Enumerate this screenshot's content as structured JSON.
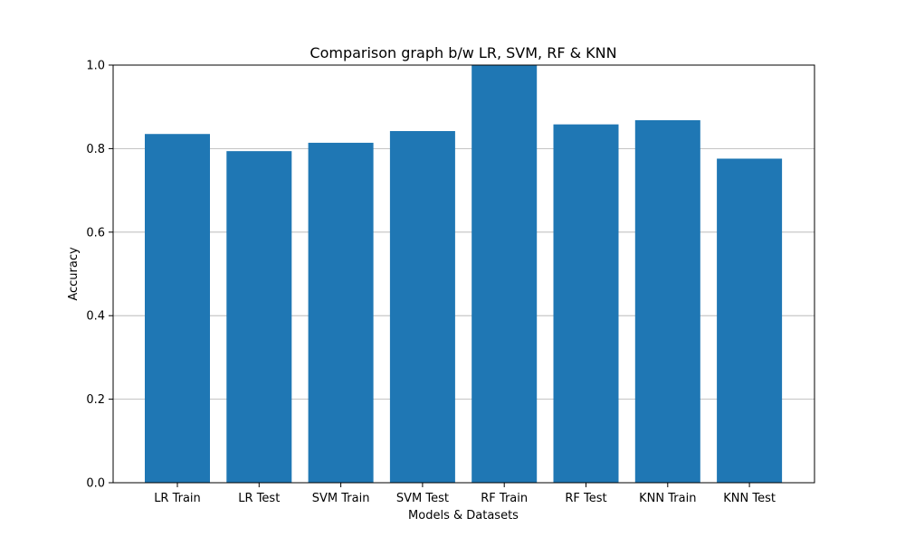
{
  "chart_data": {
    "type": "bar",
    "title": "Comparison graph b/w LR, SVM, RF & KNN",
    "xlabel": "Models & Datasets",
    "ylabel": "Accuracy",
    "categories": [
      "LR Train",
      "LR Test",
      "SVM Train",
      "SVM Test",
      "RF Train",
      "RF Test",
      "KNN Train",
      "KNN Test"
    ],
    "values": [
      0.835,
      0.794,
      0.814,
      0.842,
      1.0,
      0.858,
      0.868,
      0.776
    ],
    "ylim": [
      0,
      1.0
    ],
    "yticks": [
      "0.0",
      "0.2",
      "0.4",
      "0.6",
      "0.8",
      "1.0"
    ],
    "grid": "horizontal",
    "legend": "none",
    "bar_color": "#1f77b4"
  }
}
